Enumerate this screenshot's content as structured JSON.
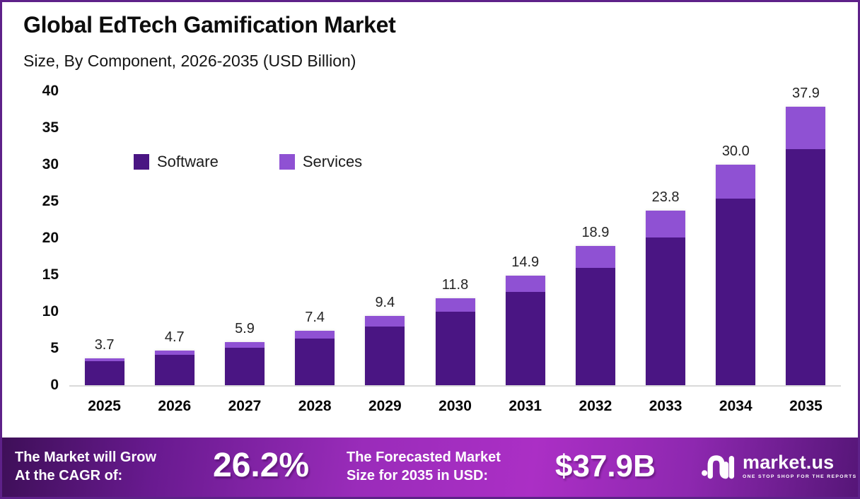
{
  "title": "Global EdTech Gamification Market",
  "subtitle": "Size, By Component, 2026-2035 (USD Billion)",
  "chart_data": {
    "type": "bar",
    "stacked": true,
    "title": "Global EdTech Gamification Market Size, By Component, 2026-2035 (USD Billion)",
    "categories": [
      "2025",
      "2026",
      "2027",
      "2028",
      "2029",
      "2030",
      "2031",
      "2032",
      "2033",
      "2034",
      "2035"
    ],
    "series": [
      {
        "name": "Software",
        "color": "#4A1583",
        "values": [
          3.3,
          4.1,
          5.1,
          6.3,
          8.0,
          10.0,
          12.7,
          16.0,
          20.1,
          25.4,
          32.1
        ]
      },
      {
        "name": "Services",
        "color": "#8F51D3",
        "values": [
          0.4,
          0.6,
          0.8,
          1.1,
          1.4,
          1.8,
          2.2,
          2.9,
          3.7,
          4.6,
          5.8
        ]
      }
    ],
    "totals": [
      3.7,
      4.7,
      5.9,
      7.4,
      9.4,
      11.8,
      14.9,
      18.9,
      23.8,
      30.0,
      37.9
    ],
    "total_labels": [
      "3.7",
      "4.7",
      "5.9",
      "7.4",
      "9.4",
      "11.8",
      "14.9",
      "18.9",
      "23.8",
      "30.0",
      "37.9"
    ],
    "y_ticks": [
      0,
      5,
      10,
      15,
      20,
      25,
      30,
      35,
      40
    ],
    "ylim": [
      0,
      40
    ],
    "xlabel": "",
    "ylabel": "",
    "grid": false,
    "legend_position": "inside-top-left"
  },
  "legend": [
    {
      "label": "Software",
      "color": "#4A1583"
    },
    {
      "label": "Services",
      "color": "#8F51D3"
    }
  ],
  "banner": {
    "cagr_label_line1": "The Market will Grow",
    "cagr_label_line2": "At the CAGR of:",
    "cagr_value": "26.2%",
    "forecast_label_line1": "The Forecasted Market",
    "forecast_label_line2": "Size for 2035 in USD:",
    "forecast_value": "$37.9B",
    "brand_name": "market.us",
    "brand_tagline": "ONE STOP SHOP FOR THE REPORTS"
  },
  "colors": {
    "software": "#4A1583",
    "services": "#8F51D3",
    "frame_border": "#5E2189",
    "axis_line": "#D9D9D9",
    "banner_gradient_left": "#3E0F58",
    "banner_gradient_mid": "#AB2FC5",
    "banner_gradient_right": "#561678"
  }
}
